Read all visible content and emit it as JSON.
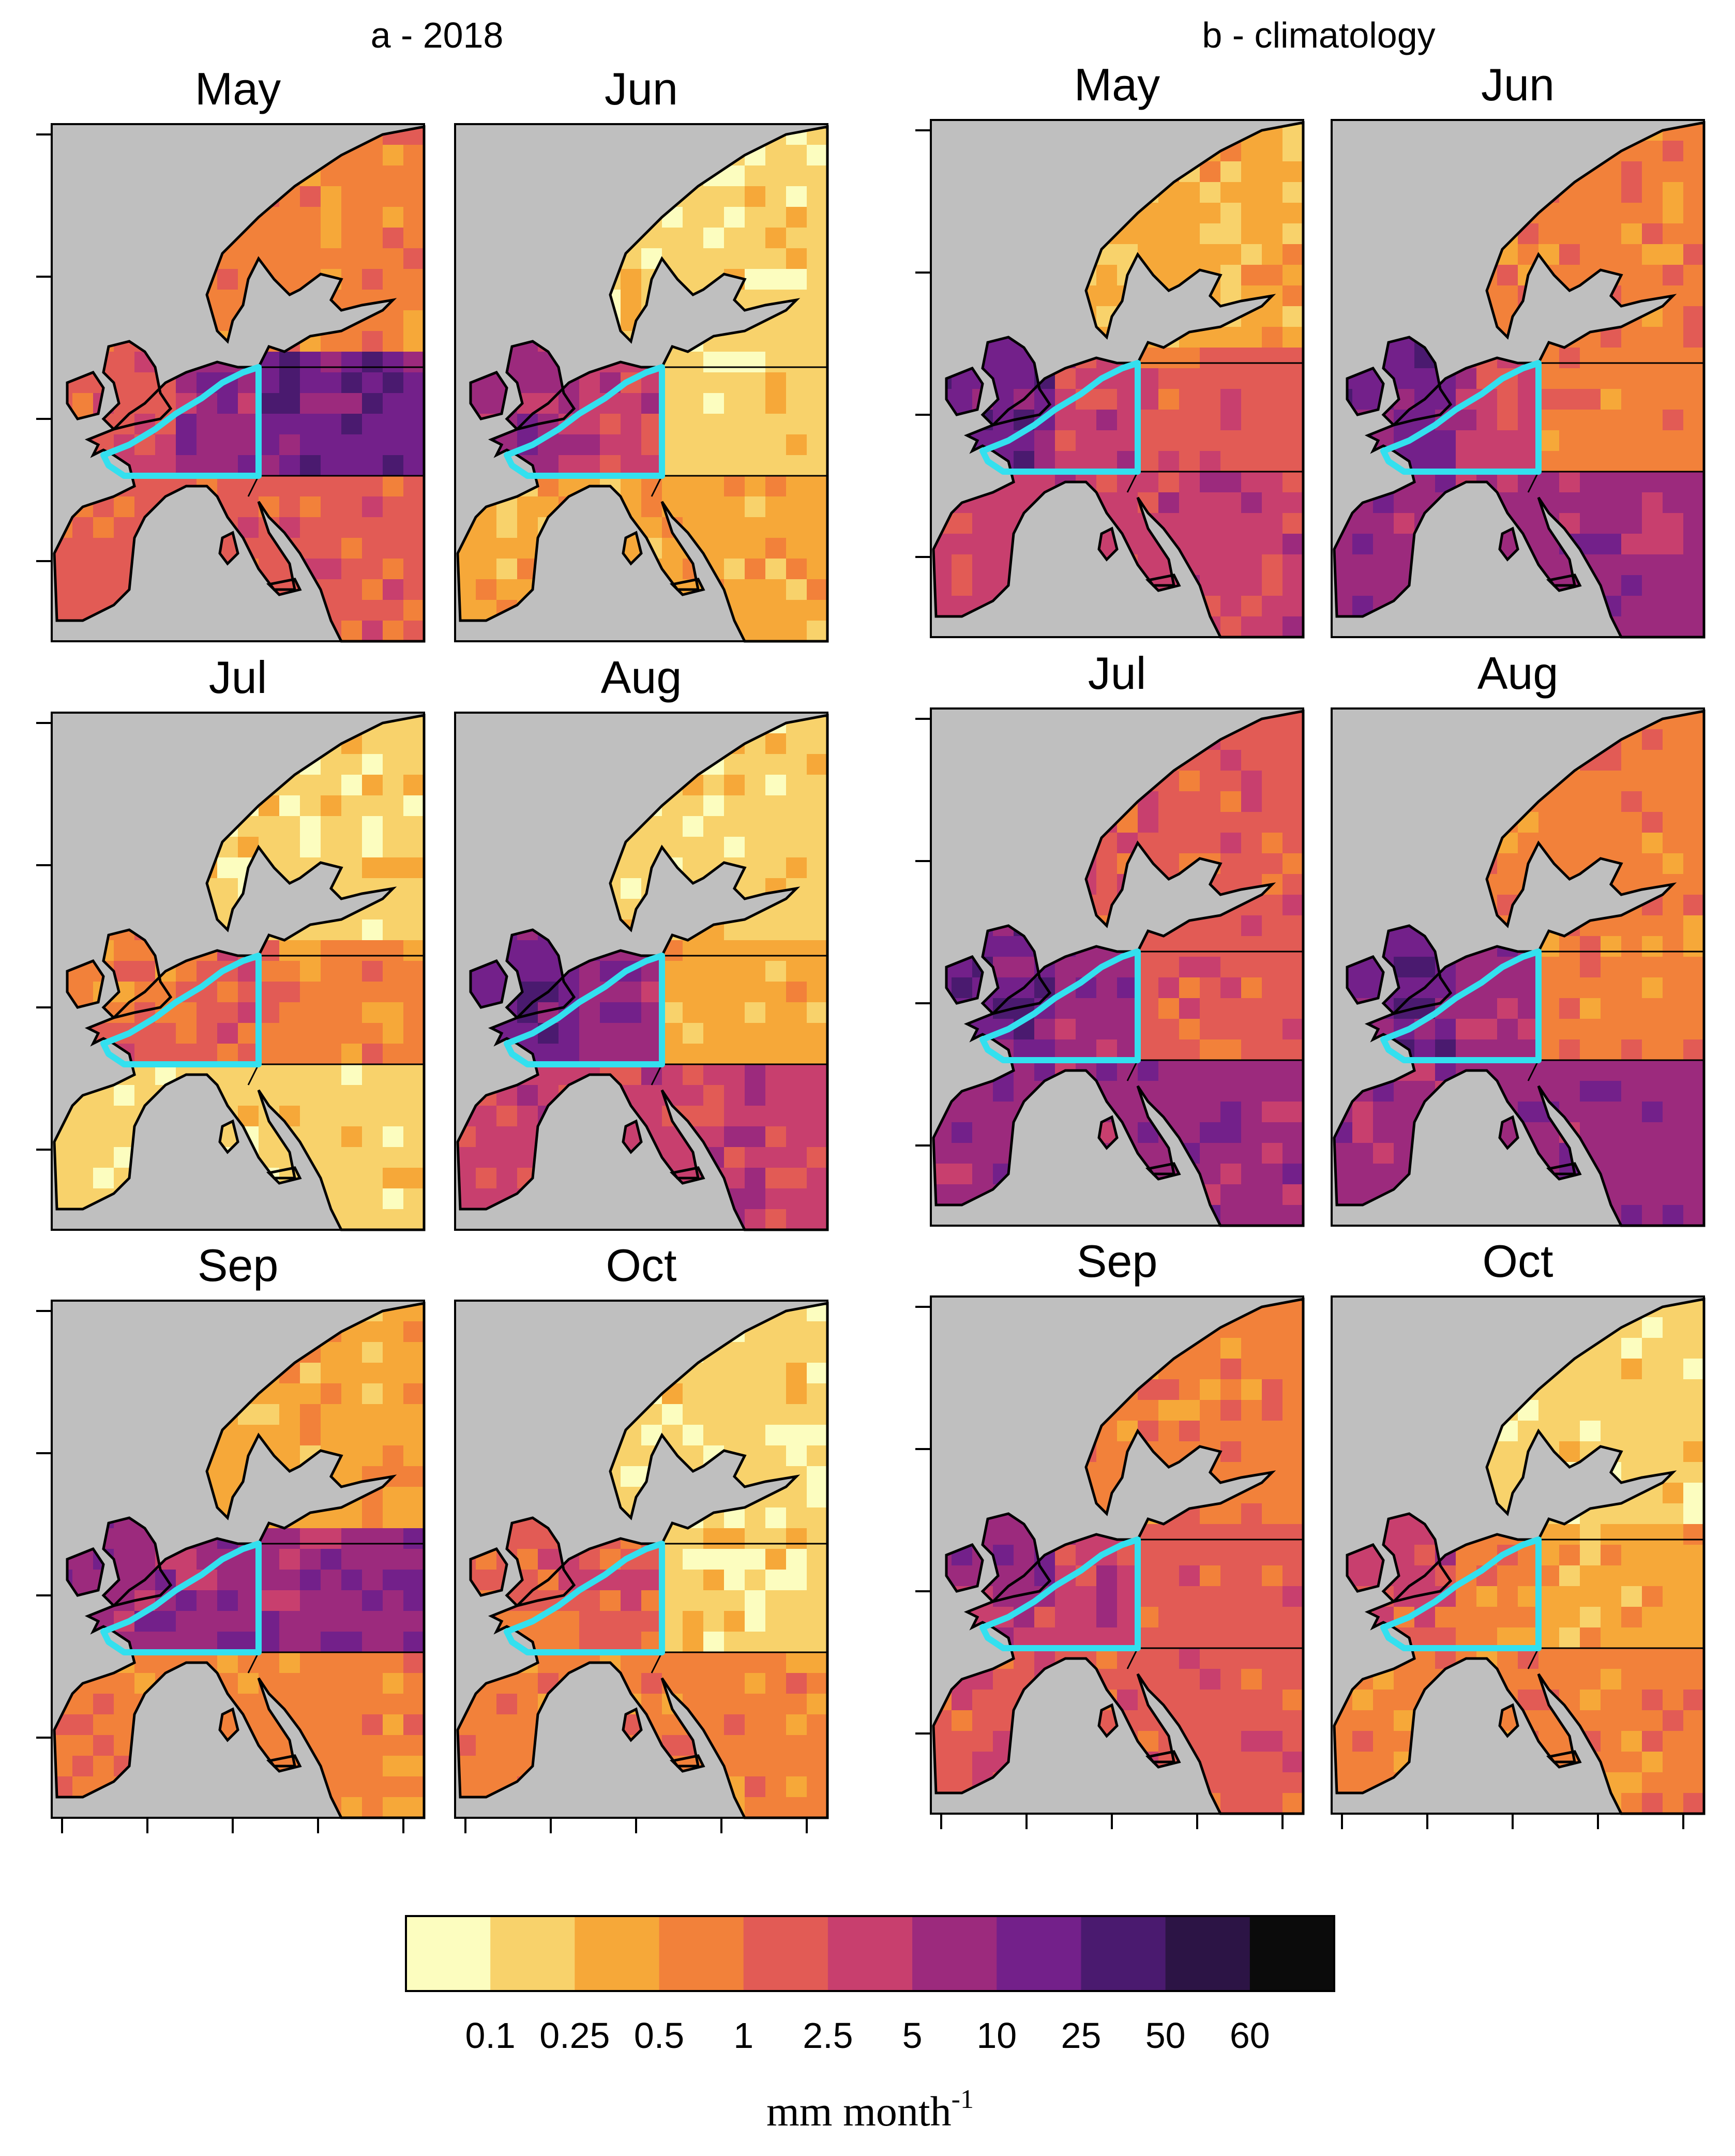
{
  "panel_labels": {
    "left": "a - 2018",
    "right": "b - climatology"
  },
  "months": [
    "May",
    "Jun",
    "Jul",
    "Aug",
    "Sep",
    "Oct"
  ],
  "legend": {
    "colors": [
      "#fcfdbf",
      "#f8d26b",
      "#f6a839",
      "#f2813a",
      "#e25b55",
      "#c83f6e",
      "#9c2a7d",
      "#73208a",
      "#4a1a6f",
      "#2c1445",
      "#0b0b0b"
    ],
    "ticks": [
      "0.1",
      "0.25",
      "0.5",
      "1",
      "2.5",
      "5",
      "10",
      "25",
      "50",
      "60"
    ],
    "unit": "mm month",
    "unit_superscript": "-1"
  },
  "colors": {
    "ocean": "#bfbfbf",
    "region_outline": "#33e0ef",
    "coastline": "#000000"
  },
  "map_levels": {
    "a": {
      "May": {
        "north": 3,
        "east": 7,
        "mid": 6,
        "west": 5,
        "south": 4,
        "uk": 4
      },
      "Jun": {
        "north": 1,
        "east": 1,
        "mid": 5,
        "west": 6,
        "south": 2,
        "uk": 6
      },
      "Jul": {
        "north": 1,
        "east": 3,
        "mid": 4,
        "west": 4,
        "south": 1,
        "uk": 3
      },
      "Aug": {
        "north": 1,
        "east": 2,
        "mid": 6,
        "west": 7,
        "south": 5,
        "uk": 7
      },
      "Sep": {
        "north": 2,
        "east": 6,
        "mid": 6,
        "west": 6,
        "south": 3,
        "uk": 6
      },
      "Oct": {
        "north": 1,
        "east": 1,
        "mid": 4,
        "west": 3,
        "south": 3,
        "uk": 4
      }
    },
    "b": {
      "May": {
        "north": 2,
        "east": 4,
        "mid": 5,
        "west": 7,
        "south": 5,
        "uk": 7
      },
      "Jun": {
        "north": 3,
        "east": 3,
        "mid": 5,
        "west": 7,
        "south": 6,
        "uk": 7
      },
      "Jul": {
        "north": 4,
        "east": 4,
        "mid": 6,
        "west": 7,
        "south": 6,
        "uk": 7
      },
      "Aug": {
        "north": 3,
        "east": 3,
        "mid": 6,
        "west": 7,
        "south": 6,
        "uk": 7
      },
      "Sep": {
        "north": 3,
        "east": 4,
        "mid": 5,
        "west": 5,
        "south": 4,
        "uk": 6
      },
      "Oct": {
        "north": 1,
        "east": 2,
        "mid": 3,
        "west": 4,
        "south": 3,
        "uk": 5
      }
    }
  }
}
